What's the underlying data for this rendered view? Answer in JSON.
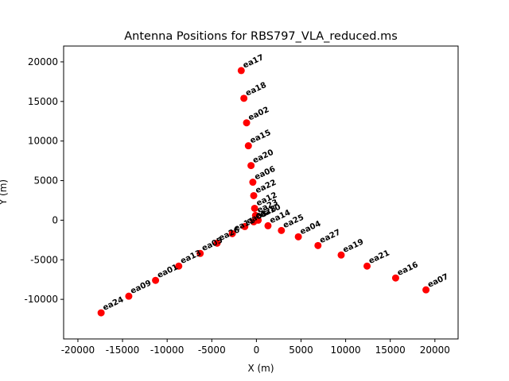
{
  "chart_data": {
    "type": "scatter",
    "title": "Antenna Positions for RBS797_VLA_reduced.ms",
    "xlabel": "X (m)",
    "ylabel": "Y (m)",
    "xlim": [
      -21600,
      22600
    ],
    "ylim": [
      -15000,
      22000
    ],
    "xticks": [
      -20000,
      -15000,
      -10000,
      -5000,
      0,
      5000,
      10000,
      15000,
      20000
    ],
    "yticks": [
      -10000,
      -5000,
      0,
      5000,
      10000,
      15000,
      20000
    ],
    "grid": false,
    "legend": "none",
    "marker_color": "#ff0000",
    "label_angle_deg": 25,
    "points": [
      {
        "name": "ea17",
        "x": -1700,
        "y": 18900
      },
      {
        "name": "ea18",
        "x": -1400,
        "y": 15400
      },
      {
        "name": "ea02",
        "x": -1100,
        "y": 12300
      },
      {
        "name": "ea15",
        "x": -900,
        "y": 9400
      },
      {
        "name": "ea20",
        "x": -600,
        "y": 6900
      },
      {
        "name": "ea06",
        "x": -400,
        "y": 4800
      },
      {
        "name": "ea22",
        "x": -300,
        "y": 3100
      },
      {
        "name": "ea12",
        "x": -200,
        "y": 1500
      },
      {
        "name": "ea23",
        "x": -100,
        "y": 600
      },
      {
        "name": "ea10",
        "x": 200,
        "y": 0
      },
      {
        "name": "ea14",
        "x": 1300,
        "y": -700
      },
      {
        "name": "ea25",
        "x": 2800,
        "y": -1300
      },
      {
        "name": "ea04",
        "x": 4700,
        "y": -2100
      },
      {
        "name": "ea27",
        "x": 6900,
        "y": -3200
      },
      {
        "name": "ea19",
        "x": 9500,
        "y": -4400
      },
      {
        "name": "ea21",
        "x": 12400,
        "y": -5800
      },
      {
        "name": "ea16",
        "x": 15600,
        "y": -7300
      },
      {
        "name": "ea07",
        "x": 19000,
        "y": -8800
      },
      {
        "name": "ea28",
        "x": -300,
        "y": -200
      },
      {
        "name": "ea03",
        "x": -1300,
        "y": -800
      },
      {
        "name": "ea11",
        "x": -2700,
        "y": -1700
      },
      {
        "name": "ea26",
        "x": -4400,
        "y": -2900
      },
      {
        "name": "ea05",
        "x": -6300,
        "y": -4200
      },
      {
        "name": "ea13",
        "x": -8700,
        "y": -5800
      },
      {
        "name": "ea01",
        "x": -11300,
        "y": -7600
      },
      {
        "name": "ea09",
        "x": -14300,
        "y": -9600
      },
      {
        "name": "ea24",
        "x": -17400,
        "y": -11700
      }
    ]
  }
}
